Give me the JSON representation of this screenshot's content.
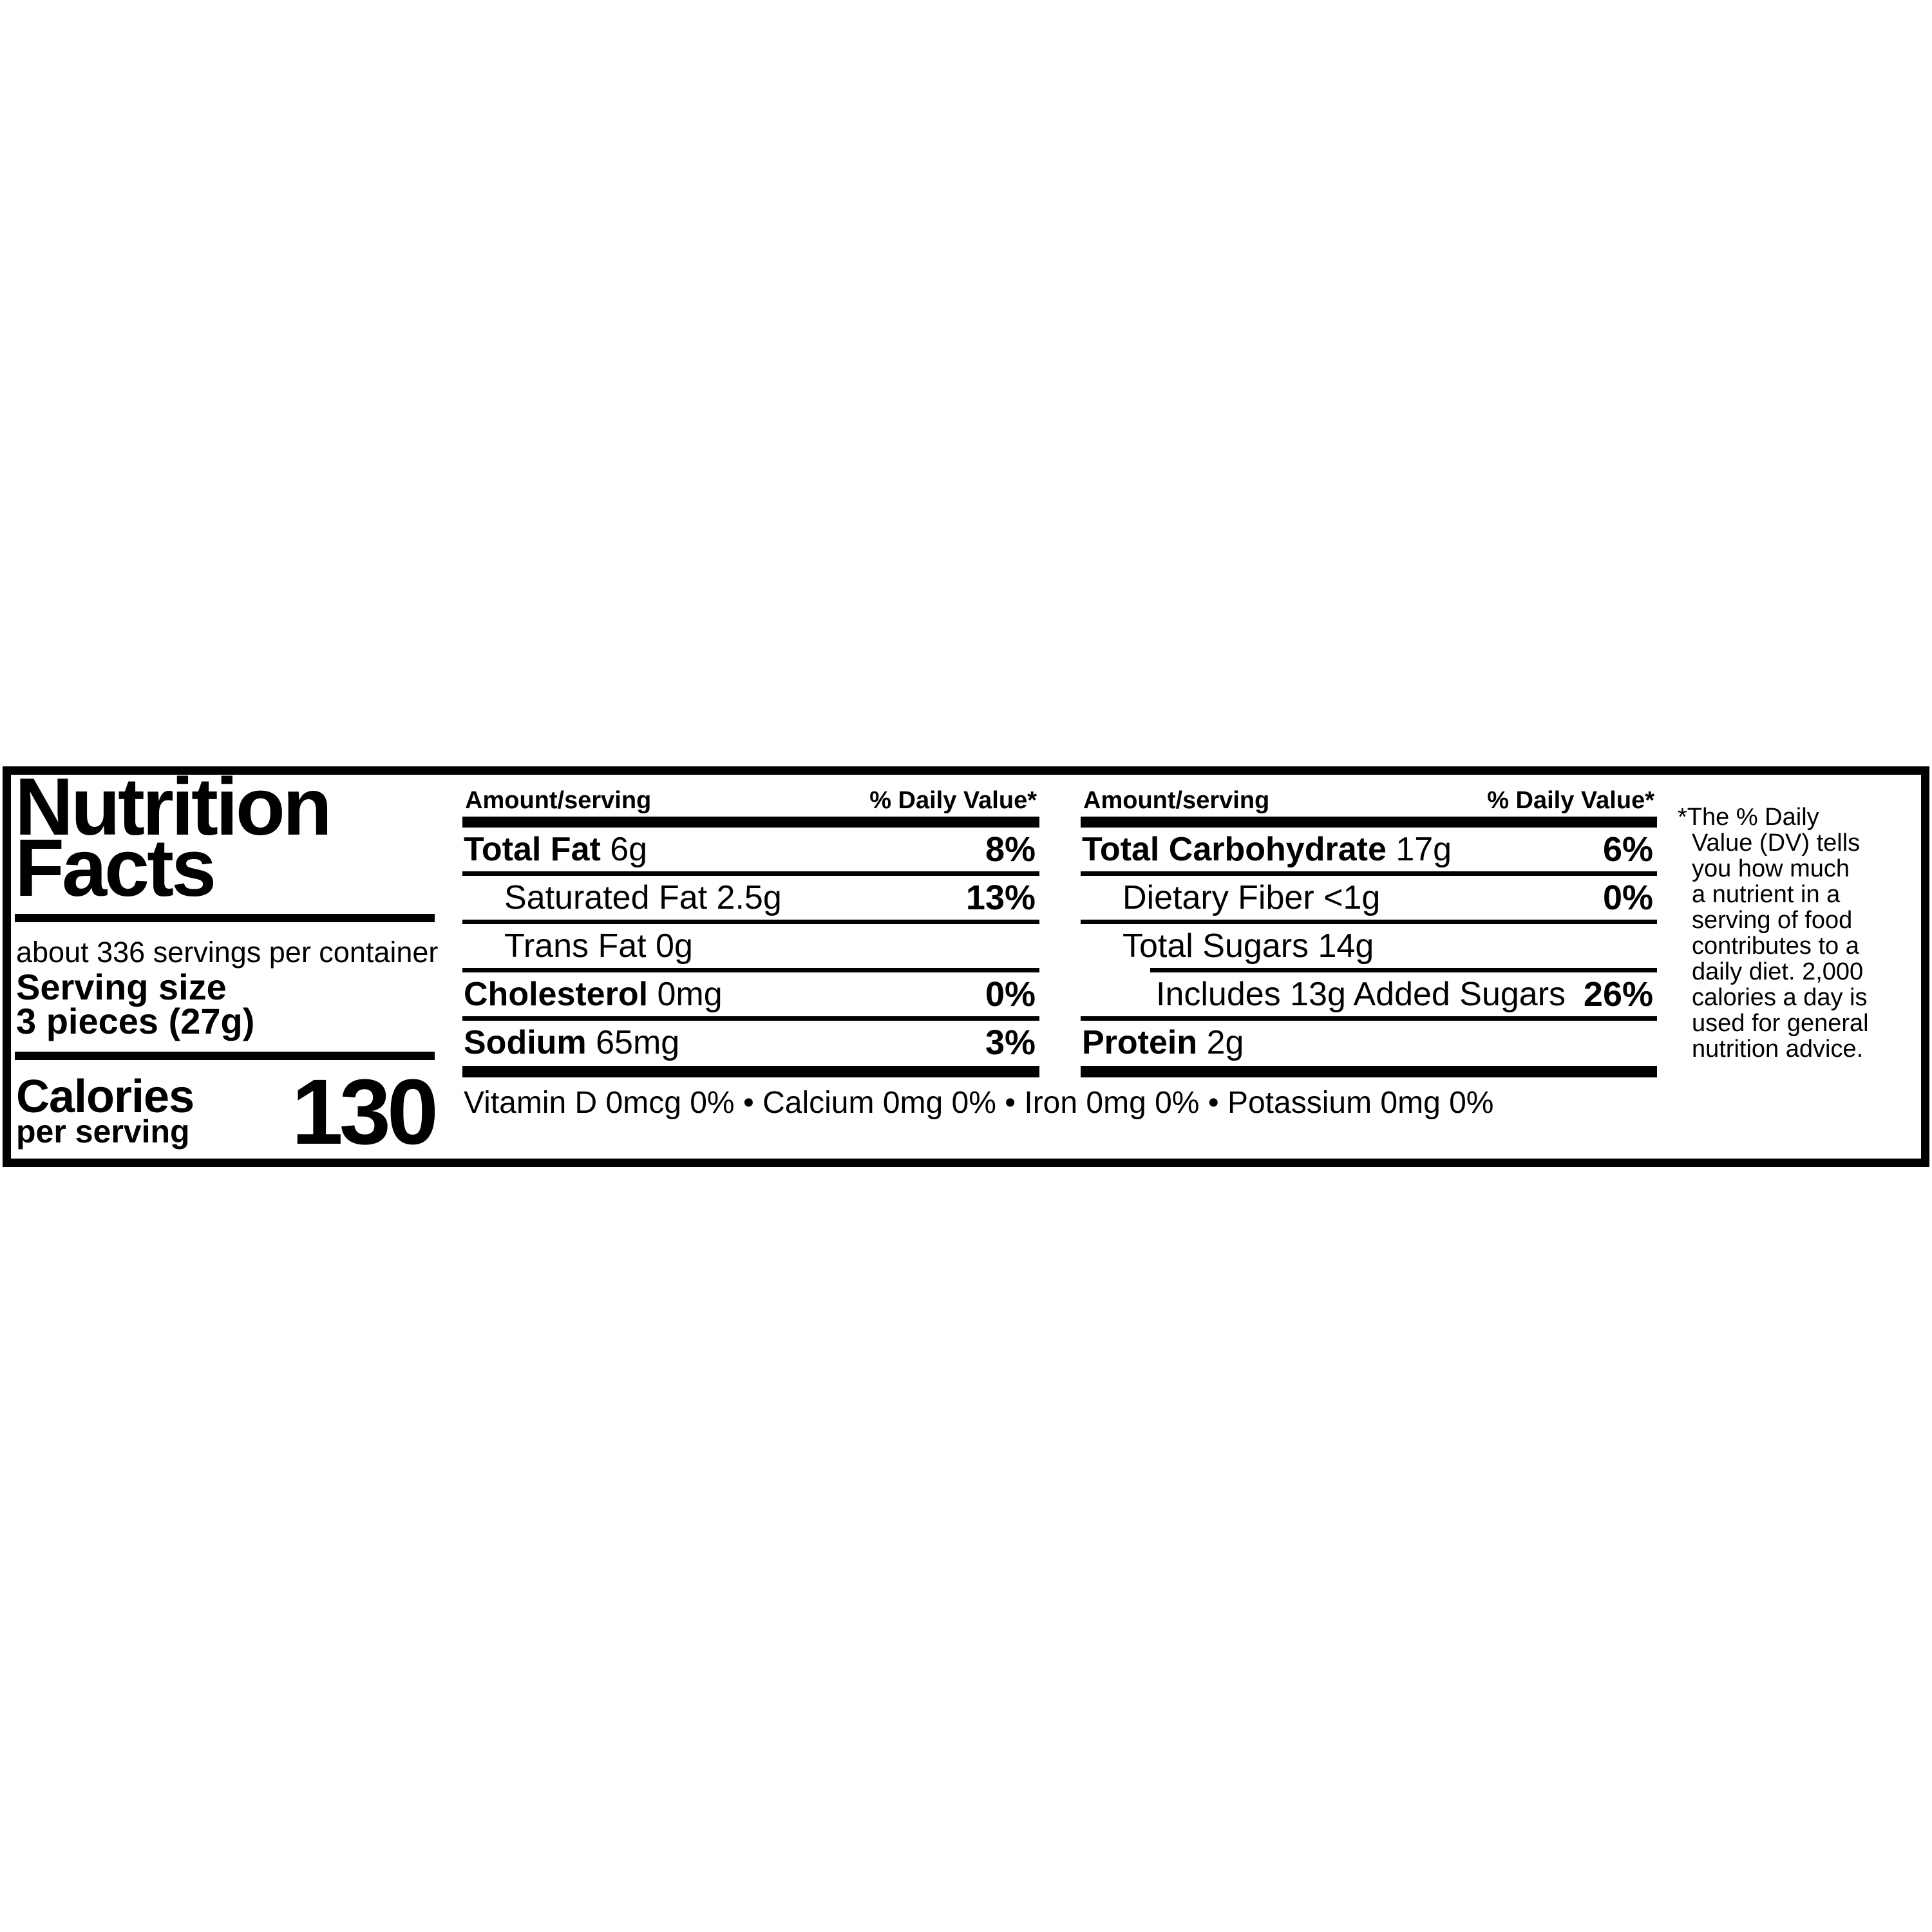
{
  "label": {
    "title_line1": "Nutrition",
    "title_line2": "Facts",
    "servings_per_container": "about 336 servings per container",
    "serving_size_label": "Serving size",
    "serving_size_value": "3 pieces (27g)",
    "calories_label": "Calories",
    "calories_sublabel": "per serving",
    "calories_value": "130",
    "columns": [
      {
        "header_amount": "Amount/serving",
        "header_dv": "% Daily Value*",
        "rows": [
          {
            "name": "Total Fat",
            "value": "6g",
            "dv": "8%",
            "bold": true,
            "indent": 0
          },
          {
            "name": "Saturated Fat",
            "value": "2.5g",
            "dv": "13%",
            "bold": false,
            "indent": 1
          },
          {
            "name": "Trans Fat",
            "value": "0g",
            "dv": "",
            "bold": false,
            "indent": 1
          },
          {
            "name": "Cholesterol",
            "value": "0mg",
            "dv": "0%",
            "bold": true,
            "indent": 0
          },
          {
            "name": "Sodium",
            "value": "65mg",
            "dv": "3%",
            "bold": true,
            "indent": 0
          }
        ]
      },
      {
        "header_amount": "Amount/serving",
        "header_dv": "% Daily Value*",
        "rows": [
          {
            "name": "Total Carbohydrate",
            "value": "17g",
            "dv": "6%",
            "bold": true,
            "indent": 0
          },
          {
            "name": "Dietary Fiber",
            "value": "<1g",
            "dv": "0%",
            "bold": false,
            "indent": 1
          },
          {
            "name": "Total Sugars",
            "value": "14g",
            "dv": "",
            "bold": false,
            "indent": 1
          },
          {
            "name": "Includes 13g Added Sugars",
            "value": "",
            "dv": "26%",
            "bold": false,
            "indent": 2,
            "sep_indent": 108
          },
          {
            "name": "Protein",
            "value": "2g",
            "dv": "",
            "bold": true,
            "indent": 0
          }
        ]
      }
    ],
    "micronutrients": "Vitamin D 0mcg 0% • Calcium 0mg 0% • Iron 0mg 0% • Potassium 0mg 0%",
    "footnote_lines": [
      "*The % Daily",
      "Value (DV) tells",
      "you how much",
      "a nutrient in a",
      "serving of food",
      "contributes to a",
      "daily diet. 2,000",
      "calories a day is",
      "used for general",
      "nutrition advice."
    ]
  }
}
